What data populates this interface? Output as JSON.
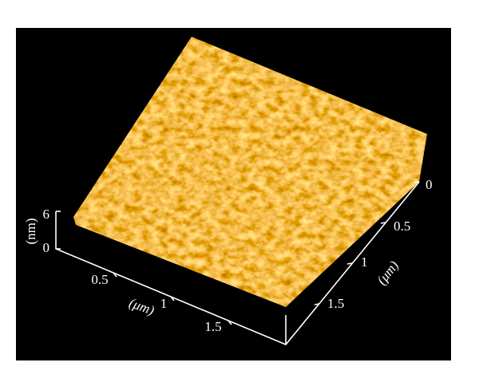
{
  "z_axis": {
    "label": "(nm)",
    "ticks": [
      "6",
      "0"
    ]
  },
  "x_axis": {
    "label": "(μm)",
    "ticks": [
      "0.5",
      "1",
      "1.5"
    ]
  },
  "y_axis": {
    "label": "(μm)",
    "ticks": [
      "0",
      "0.5",
      "1",
      "1.5"
    ]
  }
}
